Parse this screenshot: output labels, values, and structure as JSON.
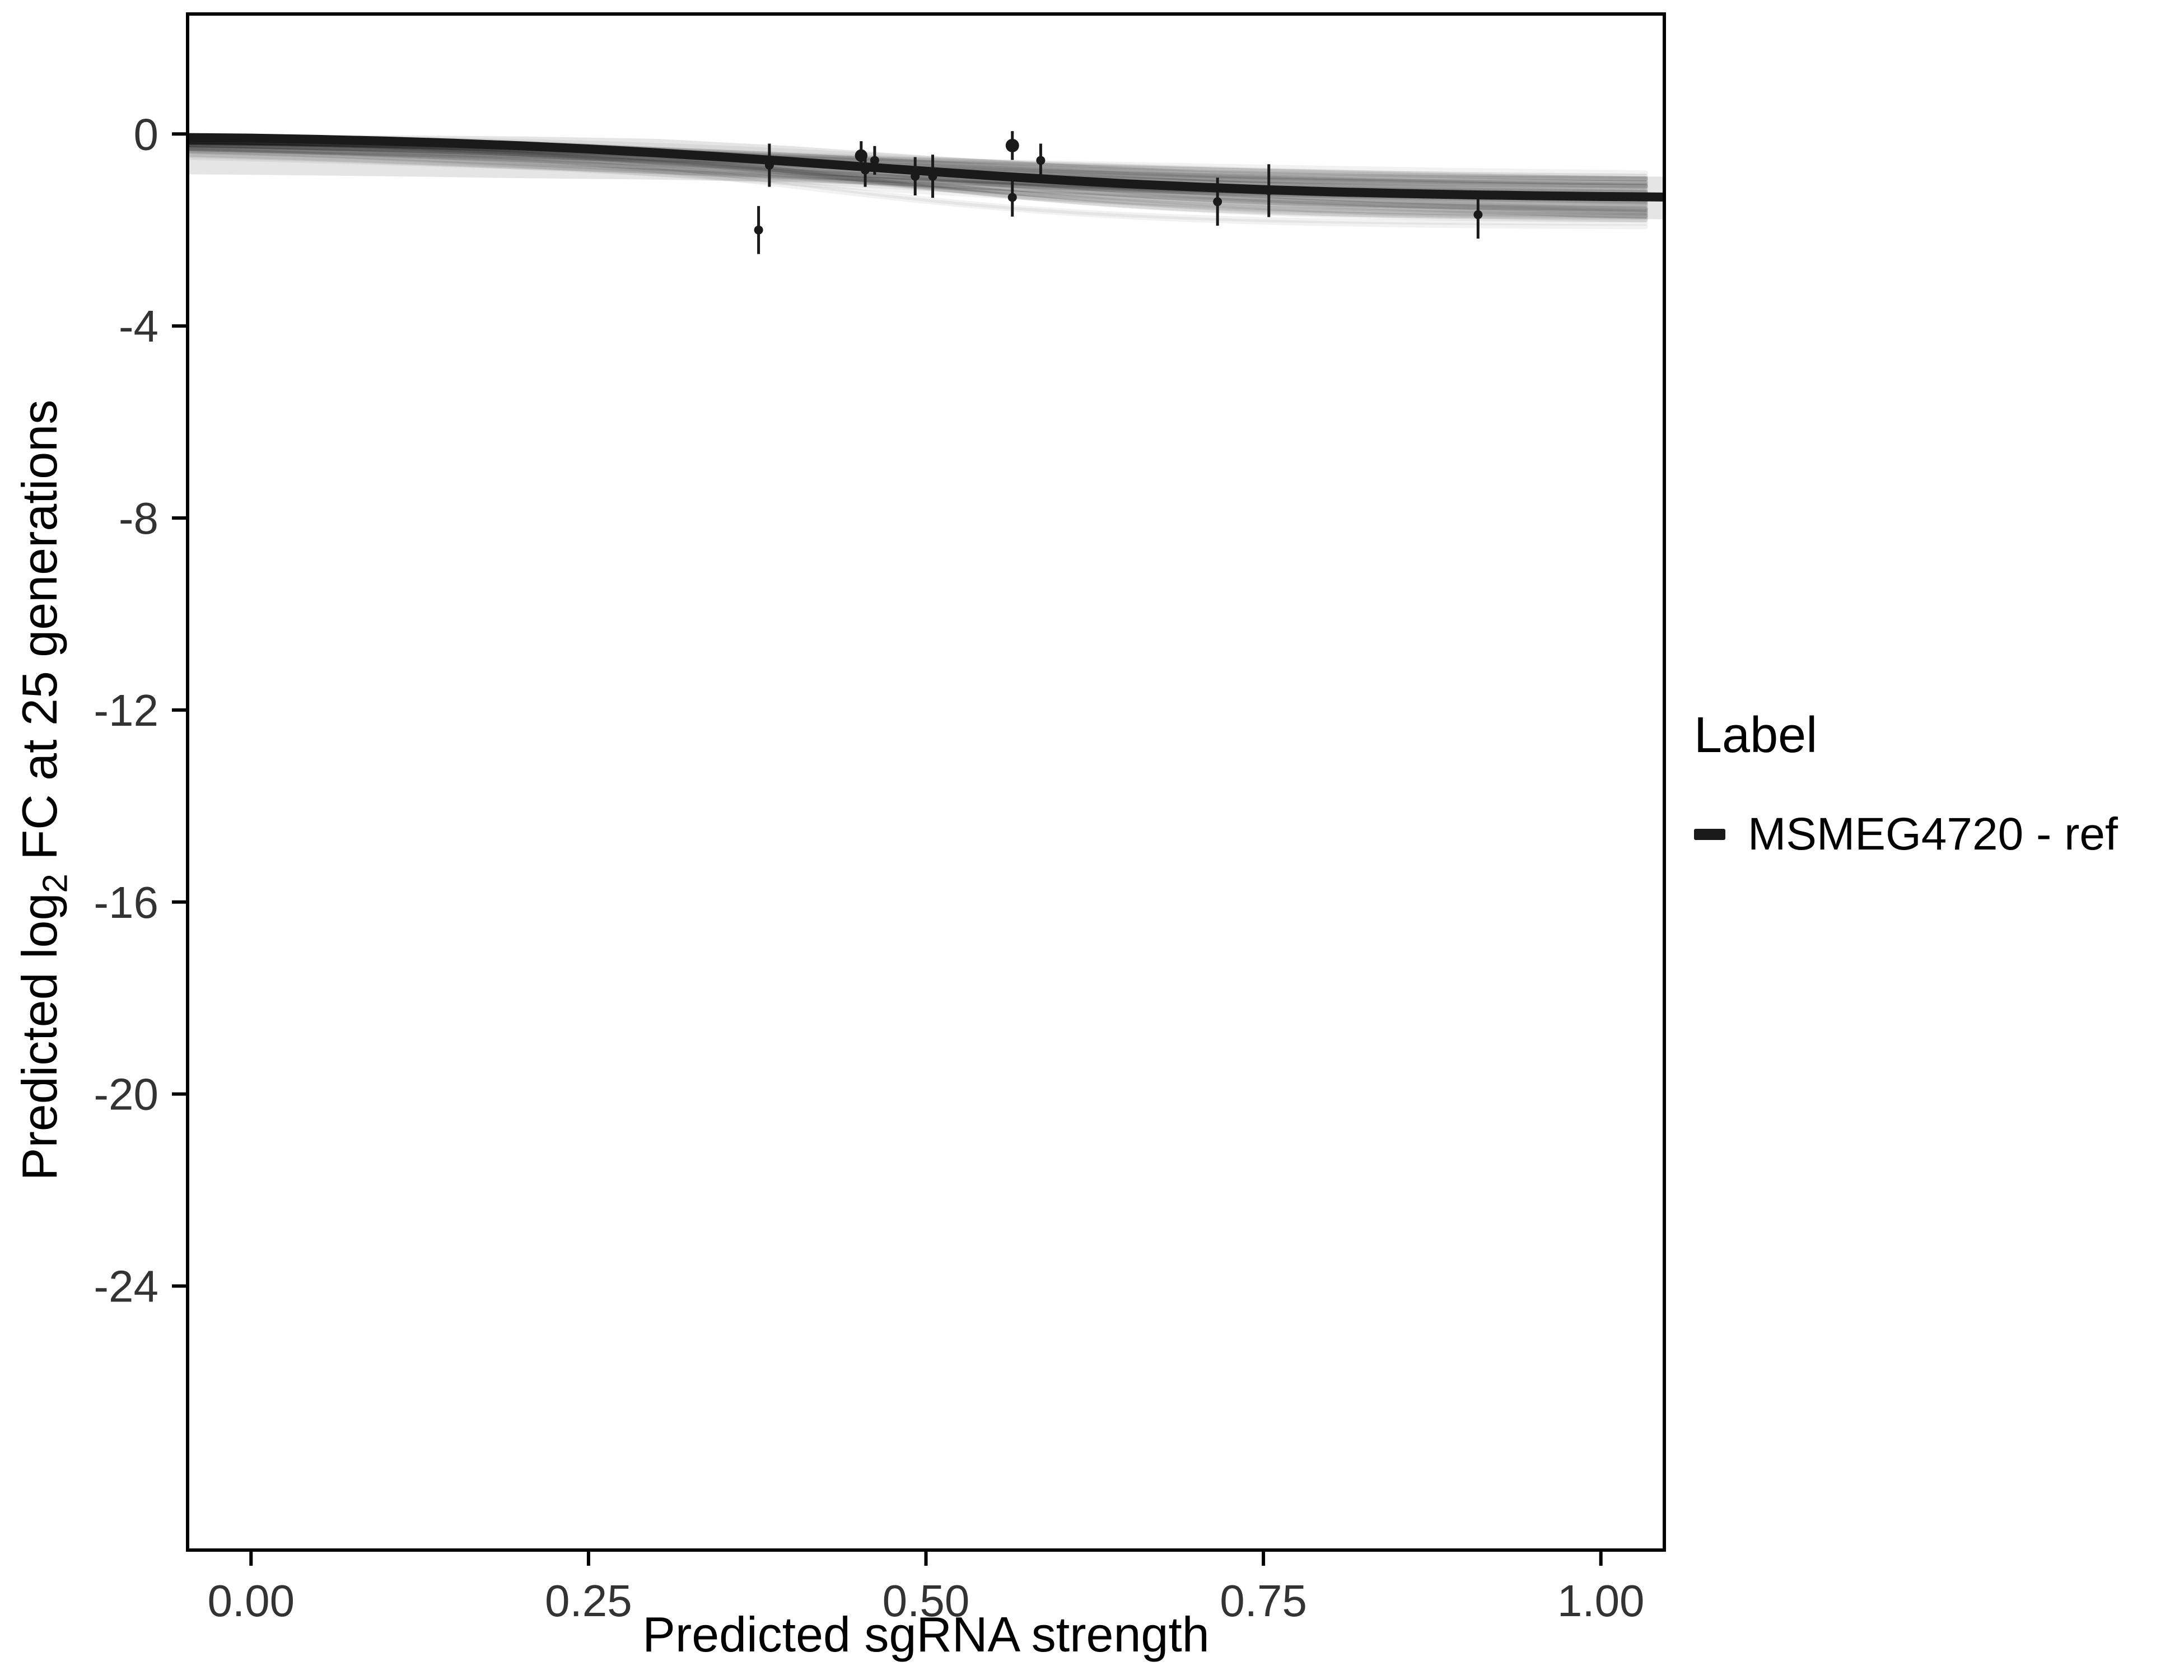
{
  "figure": {
    "background": "#ffffff",
    "panel_border_color": "#000000",
    "tick_label_color": "#333333"
  },
  "chart_data": {
    "type": "line",
    "title": "",
    "xlabel": "Predicted sgRNA strength",
    "ylabel_pre": "Predicted  log",
    "ylabel_sub": "2",
    "ylabel_post": " FC at 25 generations",
    "xlim": [
      -0.047,
      1.047
    ],
    "ylim": [
      -29.5,
      2.5
    ],
    "grid": false,
    "legend_position": "right",
    "x_ticks": [
      0.0,
      0.25,
      0.5,
      0.75,
      1.0
    ],
    "x_tick_labels": [
      "0.00",
      "0.25",
      "0.50",
      "0.75",
      "1.00"
    ],
    "y_ticks": [
      0,
      -4,
      -8,
      -12,
      -16,
      -20,
      -24
    ],
    "y_tick_labels": [
      "0",
      "-4",
      "-8",
      "-12",
      "-16",
      "-20",
      "-24"
    ],
    "curve": {
      "name": "MSMEG4720 - ref",
      "color": "#1a1a1a",
      "width": 16,
      "x": [
        -0.05,
        0,
        0.05,
        0.1,
        0.15,
        0.2,
        0.25,
        0.3,
        0.35,
        0.4,
        0.45,
        0.5,
        0.55,
        0.6,
        0.65,
        0.7,
        0.75,
        0.8,
        0.85,
        0.9,
        0.95,
        1.0,
        1.05
      ],
      "y": [
        -0.073,
        -0.085,
        -0.112,
        -0.147,
        -0.191,
        -0.246,
        -0.312,
        -0.39,
        -0.478,
        -0.574,
        -0.675,
        -0.775,
        -0.872,
        -0.959,
        -1.038,
        -1.104,
        -1.158,
        -1.203,
        -1.238,
        -1.265,
        -1.286,
        -1.302,
        -1.314
      ]
    },
    "band": {
      "color": "#000000",
      "opacity": 0.1,
      "x": [
        -0.05,
        0.0,
        0.1,
        0.2,
        0.3,
        0.4,
        0.5,
        0.6,
        0.7,
        0.8,
        0.9,
        1.0,
        1.05
      ],
      "upper": [
        -0.02,
        -0.02,
        -0.03,
        -0.05,
        -0.1,
        -0.25,
        -0.45,
        -0.62,
        -0.75,
        -0.82,
        -0.86,
        -0.88,
        -0.89
      ],
      "lower": [
        -0.84,
        -0.85,
        -0.88,
        -0.92,
        -0.95,
        -1.0,
        -1.1,
        -1.25,
        -1.4,
        -1.55,
        -1.65,
        -1.75,
        -1.78
      ]
    },
    "spaghetti": {
      "count": 70,
      "color": "#000000",
      "opacity": 0.05,
      "width": 9
    },
    "points": [
      {
        "x": 0.376,
        "y": -2.0,
        "err": 0.5,
        "r": 1
      },
      {
        "x": 0.384,
        "y": -0.65,
        "err": 0.45,
        "r": 1
      },
      {
        "x": 0.452,
        "y": -0.45,
        "err": 0.3,
        "r": 1.4
      },
      {
        "x": 0.455,
        "y": -0.75,
        "err": 0.35,
        "r": 1
      },
      {
        "x": 0.462,
        "y": -0.55,
        "err": 0.3,
        "r": 1
      },
      {
        "x": 0.492,
        "y": -0.88,
        "err": 0.4,
        "r": 1
      },
      {
        "x": 0.505,
        "y": -0.88,
        "err": 0.45,
        "r": 1
      },
      {
        "x": 0.564,
        "y": -0.24,
        "err": 0.3,
        "r": 1.5
      },
      {
        "x": 0.564,
        "y": -1.32,
        "err": 0.4,
        "r": 1
      },
      {
        "x": 0.585,
        "y": -0.55,
        "err": 0.35,
        "r": 1
      },
      {
        "x": 0.716,
        "y": -1.41,
        "err": 0.5,
        "r": 1
      },
      {
        "x": 0.754,
        "y": -1.18,
        "err": 0.55,
        "r": 1
      },
      {
        "x": 0.909,
        "y": -1.68,
        "err": 0.5,
        "r": 1
      }
    ],
    "legend": {
      "title": "Label",
      "items": [
        {
          "label": "MSMEG4720 - ref",
          "color": "#1a1a1a"
        }
      ]
    }
  }
}
